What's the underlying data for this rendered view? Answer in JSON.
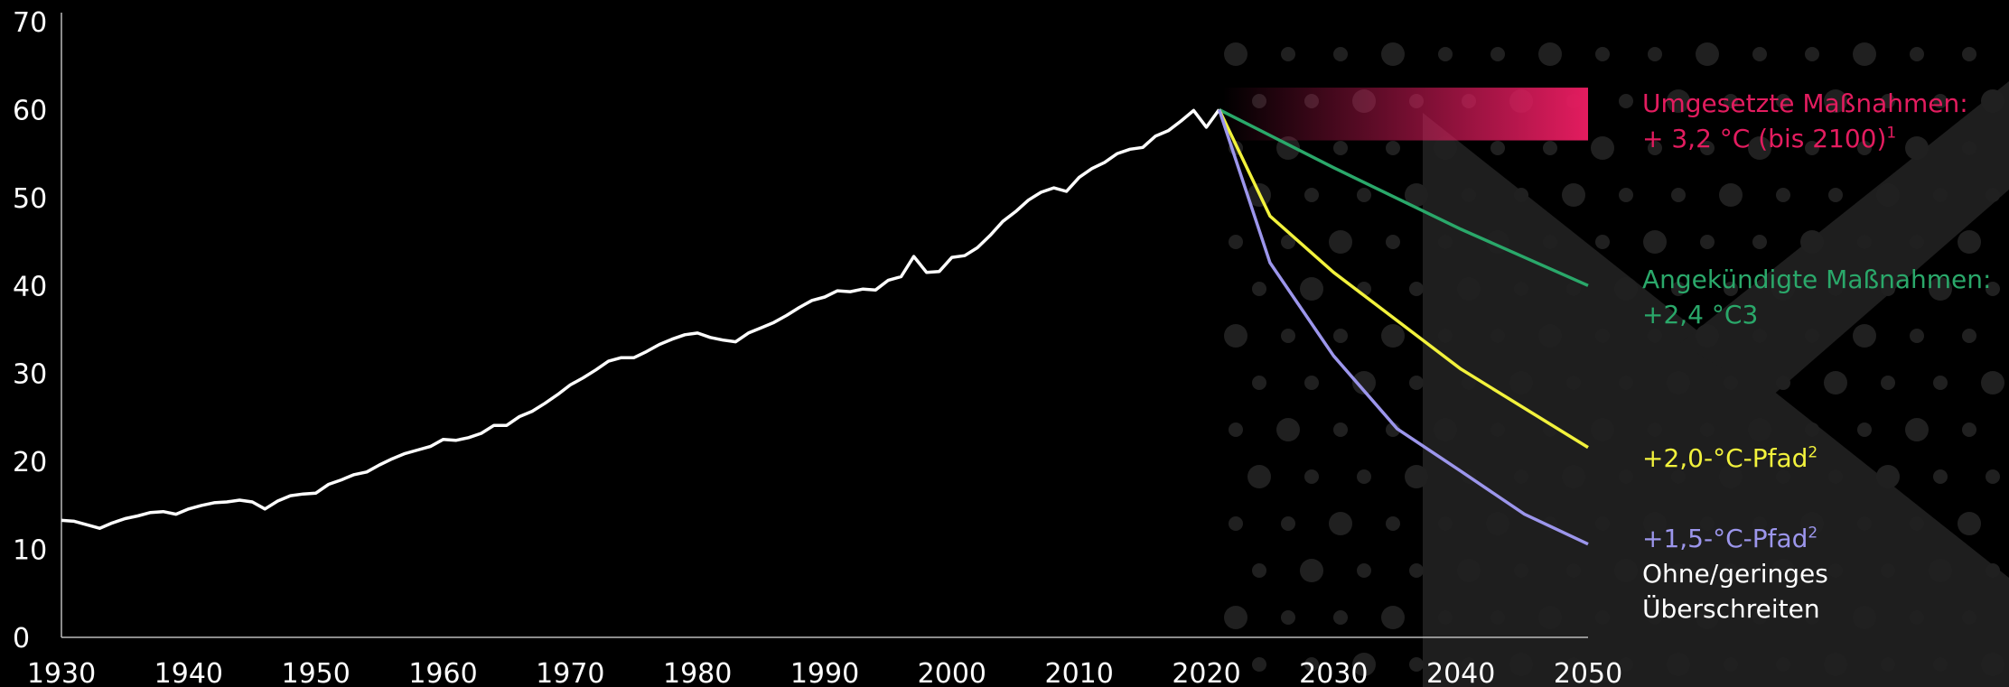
{
  "chart_data": {
    "type": "line",
    "xlim": [
      1930,
      2050
    ],
    "ylim": [
      0,
      70
    ],
    "x_ticks": [
      1930,
      1940,
      1950,
      1960,
      1970,
      1980,
      1990,
      2000,
      2010,
      2020,
      2030,
      2040,
      2050
    ],
    "y_ticks": [
      0,
      10,
      20,
      30,
      40,
      50,
      60,
      70
    ],
    "grid": false,
    "historical": {
      "color": "#ffffff",
      "points": [
        [
          1930,
          13.3
        ],
        [
          1931,
          13.2
        ],
        [
          1932,
          12.8
        ],
        [
          1933,
          12.4
        ],
        [
          1934,
          13.0
        ],
        [
          1935,
          13.5
        ],
        [
          1936,
          13.8
        ],
        [
          1937,
          14.2
        ],
        [
          1938,
          14.3
        ],
        [
          1939,
          14.0
        ],
        [
          1940,
          14.6
        ],
        [
          1941,
          15.0
        ],
        [
          1942,
          15.3
        ],
        [
          1943,
          15.4
        ],
        [
          1944,
          15.6
        ],
        [
          1945,
          15.4
        ],
        [
          1946,
          14.6
        ],
        [
          1947,
          15.5
        ],
        [
          1948,
          16.1
        ],
        [
          1949,
          16.3
        ],
        [
          1950,
          16.4
        ],
        [
          1951,
          17.4
        ],
        [
          1952,
          17.9
        ],
        [
          1953,
          18.5
        ],
        [
          1954,
          18.8
        ],
        [
          1955,
          19.6
        ],
        [
          1956,
          20.3
        ],
        [
          1957,
          20.9
        ],
        [
          1958,
          21.3
        ],
        [
          1959,
          21.7
        ],
        [
          1960,
          22.5
        ],
        [
          1961,
          22.4
        ],
        [
          1962,
          22.7
        ],
        [
          1963,
          23.2
        ],
        [
          1964,
          24.1
        ],
        [
          1965,
          24.1
        ],
        [
          1966,
          25.1
        ],
        [
          1967,
          25.7
        ],
        [
          1968,
          26.6
        ],
        [
          1969,
          27.6
        ],
        [
          1970,
          28.7
        ],
        [
          1971,
          29.5
        ],
        [
          1972,
          30.4
        ],
        [
          1973,
          31.4
        ],
        [
          1974,
          31.8
        ],
        [
          1975,
          31.8
        ],
        [
          1976,
          32.5
        ],
        [
          1977,
          33.3
        ],
        [
          1978,
          33.9
        ],
        [
          1979,
          34.4
        ],
        [
          1980,
          34.6
        ],
        [
          1981,
          34.1
        ],
        [
          1982,
          33.8
        ],
        [
          1983,
          33.6
        ],
        [
          1984,
          34.6
        ],
        [
          1985,
          35.2
        ],
        [
          1986,
          35.8
        ],
        [
          1987,
          36.6
        ],
        [
          1988,
          37.5
        ],
        [
          1989,
          38.3
        ],
        [
          1990,
          38.7
        ],
        [
          1991,
          39.4
        ],
        [
          1992,
          39.3
        ],
        [
          1993,
          39.6
        ],
        [
          1994,
          39.5
        ],
        [
          1995,
          40.6
        ],
        [
          1996,
          41.0
        ],
        [
          1997,
          43.3
        ],
        [
          1998,
          41.5
        ],
        [
          1999,
          41.6
        ],
        [
          2000,
          43.2
        ],
        [
          2001,
          43.4
        ],
        [
          2002,
          44.3
        ],
        [
          2003,
          45.7
        ],
        [
          2004,
          47.3
        ],
        [
          2005,
          48.4
        ],
        [
          2006,
          49.7
        ],
        [
          2007,
          50.6
        ],
        [
          2008,
          51.1
        ],
        [
          2009,
          50.7
        ],
        [
          2010,
          52.3
        ],
        [
          2011,
          53.3
        ],
        [
          2012,
          54.0
        ],
        [
          2013,
          55.0
        ],
        [
          2014,
          55.5
        ],
        [
          2015,
          55.7
        ],
        [
          2016,
          57.0
        ],
        [
          2017,
          57.6
        ],
        [
          2018,
          58.7
        ],
        [
          2019,
          59.9
        ],
        [
          2020,
          58.0
        ],
        [
          2021,
          60.0
        ]
      ]
    },
    "series": [
      {
        "name": "Umgesetzte Maßnahmen",
        "type": "band",
        "color": "#e31c5f",
        "x_range": [
          2021,
          2050
        ],
        "y_range": [
          56.5,
          62.5
        ],
        "label_line1": "Umgesetzte Maßnahmen:",
        "label_line2": "+ 3,2 °C (bis 2100)",
        "label_sup": "1"
      },
      {
        "name": "Angekündigte Maßnahmen",
        "color": "#2aa86a",
        "points": [
          [
            2021,
            60.0
          ],
          [
            2030,
            53.4
          ],
          [
            2040,
            46.4
          ],
          [
            2050,
            40.0
          ]
        ],
        "label_line1": "Angekündigte Maßnahmen:",
        "label_line2": "+2,4 °C3"
      },
      {
        "name": "+2,0-°C-Pfad",
        "color": "#f2f23c",
        "points": [
          [
            2021,
            60.0
          ],
          [
            2025,
            47.9
          ],
          [
            2030,
            41.5
          ],
          [
            2040,
            30.5
          ],
          [
            2050,
            21.6
          ]
        ],
        "label_line1": "+2,0-°C-Pfad",
        "label_sup": "2"
      },
      {
        "name": "+1,5-°C-Pfad",
        "color": "#9c96ec",
        "points": [
          [
            2021,
            60.0
          ],
          [
            2025,
            42.6
          ],
          [
            2030,
            32.0
          ],
          [
            2035,
            23.7
          ],
          [
            2040,
            18.9
          ],
          [
            2045,
            14.0
          ],
          [
            2050,
            10.6
          ]
        ],
        "label_line1": "+1,5-°C-Pfad",
        "label_sup": "2",
        "label_line2": "Ohne/geringes",
        "label_line3": "Überschreiten",
        "label_line2_color": "#ffffff"
      }
    ]
  }
}
